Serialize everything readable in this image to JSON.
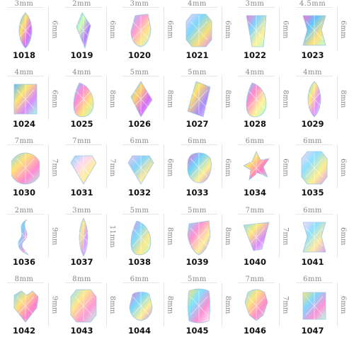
{
  "items": [
    {
      "code": "1018",
      "width": "3mm",
      "height": "6mm",
      "shape": "marquise",
      "colors": [
        "#5fb7ff",
        "#ffe26a",
        "#d96bff",
        "#7ef0d6"
      ]
    },
    {
      "code": "1019",
      "width": "2mm",
      "height": "6mm",
      "shape": "kite",
      "colors": [
        "#6ac3ff",
        "#d1ffb0",
        "#b27bff",
        "#ffffff"
      ]
    },
    {
      "code": "1020",
      "width": "3mm",
      "height": "6mm",
      "shape": "drop",
      "colors": [
        "#7bd0ff",
        "#ff9ad6",
        "#ffe78a",
        "#b5f5ff"
      ]
    },
    {
      "code": "1021",
      "width": "4mm",
      "height": "6mm",
      "shape": "octagon",
      "colors": [
        "#ffd5f6",
        "#7dd7ff",
        "#f6e17a",
        "#e28bff"
      ]
    },
    {
      "code": "1022",
      "width": "3mm",
      "height": "6mm",
      "shape": "trapezoid",
      "colors": [
        "#ff79c8",
        "#7fd4ff",
        "#fff199",
        "#b7ffcf"
      ]
    },
    {
      "code": "1023",
      "width": "4.5mm",
      "height": "6mm",
      "shape": "bowtie",
      "colors": [
        "#ff6dcb",
        "#61c6ff",
        "#ffe07c",
        "#b8ffd9"
      ]
    },
    {
      "code": "1024",
      "width": "4mm",
      "height": "6mm",
      "shape": "rectangle",
      "colors": [
        "#5cbcff",
        "#ffe56e",
        "#d88bff",
        "#a7ffe0"
      ]
    },
    {
      "code": "1025",
      "width": "4mm",
      "height": "8mm",
      "shape": "pear",
      "colors": [
        "#7bd6ff",
        "#ff8ad6",
        "#ffe57d",
        "#a9ffd8"
      ]
    },
    {
      "code": "1026",
      "width": "5mm",
      "height": "8mm",
      "shape": "rhombus",
      "colors": [
        "#6fdcff",
        "#ffd06c",
        "#d56dff",
        "#ffffff"
      ]
    },
    {
      "code": "1027",
      "width": "5mm",
      "height": "8mm",
      "shape": "parallelogram",
      "colors": [
        "#78e6ff",
        "#ffe06b",
        "#a98cff",
        "#ffd2f3"
      ]
    },
    {
      "code": "1028",
      "width": "4mm",
      "height": "8mm",
      "shape": "pear",
      "colors": [
        "#6dd0ff",
        "#ff8bcb",
        "#fff39a",
        "#a8ffd0"
      ]
    },
    {
      "code": "1029",
      "width": "4mm",
      "height": "8mm",
      "shape": "marquise",
      "colors": [
        "#6fe0ff",
        "#ffe880",
        "#e48cff",
        "#b9ffde"
      ]
    },
    {
      "code": "1030",
      "width": "7mm",
      "height": "7mm",
      "shape": "circle",
      "colors": [
        "#7cd9ff",
        "#ffe179",
        "#ff8bd5",
        "#b4ffe6"
      ]
    },
    {
      "code": "1031",
      "width": "7mm",
      "height": "7mm",
      "shape": "diamond",
      "colors": [
        "#83dbff",
        "#ffd7f2",
        "#fff199",
        "#d58aff"
      ]
    },
    {
      "code": "1032",
      "width": "6mm",
      "height": "6mm",
      "shape": "diamond",
      "colors": [
        "#ffc0e8",
        "#7fd4ff",
        "#ffe89a",
        "#b5ffe6"
      ]
    },
    {
      "code": "1033",
      "width": "6mm",
      "height": "6mm",
      "shape": "blob",
      "colors": [
        "#ff6bcf",
        "#6fd2ff",
        "#fff095",
        "#c18bff"
      ]
    },
    {
      "code": "1034",
      "width": "6mm",
      "height": "6mm",
      "shape": "star",
      "colors": [
        "#6cd2ff",
        "#ffe071",
        "#ff79c8",
        "#a9ffdb"
      ]
    },
    {
      "code": "1035",
      "width": "6mm",
      "height": "6mm",
      "shape": "octagon",
      "colors": [
        "#ffd8f5",
        "#8ce0ff",
        "#ffef8f",
        "#d99bff"
      ]
    },
    {
      "code": "1036",
      "width": "2mm",
      "height": "9mm",
      "shape": "wave",
      "colors": [
        "#ffe36e",
        "#76d3ff",
        "#ff9be0",
        "#ffffff"
      ]
    },
    {
      "code": "1037",
      "width": "3mm",
      "height": "11mm",
      "shape": "needle",
      "colors": [
        "#7bdcff",
        "#ffe58a",
        "#d59bff",
        "#ffffff"
      ]
    },
    {
      "code": "1038",
      "width": "5mm",
      "height": "8mm",
      "shape": "pear",
      "colors": [
        "#ff8cd1",
        "#7dd8ff",
        "#ffe88a",
        "#b2ffd7"
      ]
    },
    {
      "code": "1039",
      "width": "5mm",
      "height": "8mm",
      "shape": "shield",
      "colors": [
        "#7fe3ff",
        "#ff92d3",
        "#fff09a",
        "#b88bff"
      ]
    },
    {
      "code": "1040",
      "width": "7mm",
      "height": "7mm",
      "shape": "triangle",
      "colors": [
        "#7fe1ff",
        "#ffe87a",
        "#d98cff",
        "#ffffff"
      ]
    },
    {
      "code": "1041",
      "width": "6mm",
      "height": "6mm",
      "shape": "bowtie",
      "colors": [
        "#ffdaf5",
        "#8ce1ff",
        "#ffeaa0",
        "#d7a3ff"
      ]
    },
    {
      "code": "1042",
      "width": "8mm",
      "height": "9mm",
      "shape": "heart",
      "colors": [
        "#7fd7ff",
        "#ffe27a",
        "#ff7fd0",
        "#a8ffd7"
      ]
    },
    {
      "code": "1043",
      "width": "8mm",
      "height": "8mm",
      "shape": "octagon",
      "colors": [
        "#8fe6ff",
        "#ffe78a",
        "#ff9ad8",
        "#b6ffe5"
      ]
    },
    {
      "code": "1044",
      "width": "6mm",
      "height": "8mm",
      "shape": "skull",
      "colors": [
        "#ff79ca",
        "#78d6ff",
        "#fff096",
        "#c18bff"
      ]
    },
    {
      "code": "1045",
      "width": "5mm",
      "height": "8mm",
      "shape": "cushion",
      "colors": [
        "#ffe36c",
        "#7ee3ff",
        "#ff8fd3",
        "#ffffff"
      ]
    },
    {
      "code": "1046",
      "width": "7mm",
      "height": "7mm",
      "shape": "bear",
      "colors": [
        "#8fe3ff",
        "#ffe37f",
        "#ff8cd0",
        "#b3ffe3"
      ]
    },
    {
      "code": "1047",
      "width": "6mm",
      "height": "6mm",
      "shape": "square",
      "colors": [
        "#ffe46f",
        "#7fd8ff",
        "#ff92d6",
        "#b8ffe4"
      ]
    }
  ]
}
